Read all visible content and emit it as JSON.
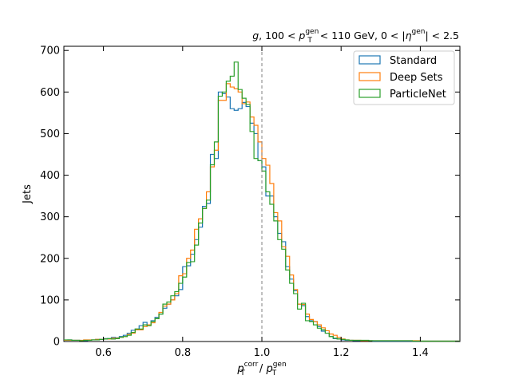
{
  "chart_data": {
    "type": "step-histogram",
    "title_parts": {
      "flavor": "g",
      "pt_low": "100",
      "pt_high": "110",
      "pt_unit": "GeV",
      "eta_low": "0",
      "eta_high": "2.5",
      "sup_gen": "gen",
      "sub_T": "T"
    },
    "xlabel_parts": {
      "p": "p",
      "sub": "T",
      "num_sup": "corr",
      "den_sup": "gen",
      "slash": " / "
    },
    "ylabel": "Jets",
    "xlim": [
      0.5,
      1.5
    ],
    "ylim": [
      0,
      710
    ],
    "xticks": [
      0.6,
      0.8,
      1.0,
      1.2,
      1.4
    ],
    "xtick_labels": [
      "0.6",
      "0.8",
      "1.0",
      "1.2",
      "1.4"
    ],
    "yticks": [
      0,
      100,
      200,
      300,
      400,
      500,
      600,
      700
    ],
    "ytick_labels": [
      "0",
      "100",
      "200",
      "300",
      "400",
      "500",
      "600",
      "700"
    ],
    "reference_line_x": 1.0,
    "legend_placement": "top-right",
    "bin_start": 0.5,
    "bin_width": 0.01,
    "series": [
      {
        "name": "Standard",
        "color": "#1f77b4",
        "values": [
          3,
          4,
          3,
          3,
          2,
          2,
          3,
          4,
          5,
          5,
          7,
          7,
          10,
          9,
          12,
          15,
          20,
          27,
          30,
          38,
          46,
          40,
          50,
          58,
          66,
          80,
          90,
          100,
          110,
          125,
          180,
          182,
          210,
          245,
          275,
          325,
          332,
          450,
          440,
          600,
          596,
          588,
          560,
          556,
          560,
          575,
          565,
          525,
          500,
          435,
          420,
          350,
          350,
          300,
          260,
          240,
          180,
          150,
          122,
          90,
          86,
          60,
          50,
          48,
          36,
          25,
          20,
          12,
          7,
          6,
          4,
          3,
          3,
          2,
          2,
          2,
          2,
          2,
          1,
          1,
          1,
          1,
          1,
          1,
          1,
          1,
          1,
          1,
          1,
          1,
          1,
          1,
          1,
          1,
          1,
          1,
          1,
          1,
          1,
          1
        ]
      },
      {
        "name": "Deep Sets",
        "color": "#ff7f0e",
        "values": [
          3,
          3,
          3,
          3,
          3,
          4,
          4,
          4,
          5,
          5,
          6,
          6,
          8,
          8,
          10,
          12,
          17,
          20,
          28,
          28,
          36,
          40,
          45,
          55,
          70,
          85,
          90,
          100,
          115,
          158,
          163,
          200,
          220,
          270,
          295,
          320,
          360,
          420,
          460,
          580,
          580,
          620,
          612,
          608,
          600,
          572,
          576,
          540,
          520,
          480,
          440,
          424,
          380,
          310,
          290,
          228,
          205,
          160,
          125,
          90,
          89,
          66,
          53,
          48,
          40,
          33,
          26,
          18,
          15,
          10,
          6,
          4,
          3,
          3,
          3,
          2,
          2,
          2,
          2,
          2,
          2,
          2,
          2,
          2,
          2,
          2,
          2,
          2,
          2,
          2,
          1,
          1,
          1,
          1,
          1,
          1,
          1,
          1,
          1,
          1
        ]
      },
      {
        "name": "ParticleNet",
        "color": "#2ca02c",
        "values": [
          4,
          4,
          3,
          3,
          2,
          3,
          3,
          4,
          4,
          5,
          6,
          7,
          6,
          7,
          10,
          12,
          15,
          22,
          30,
          30,
          40,
          38,
          48,
          55,
          66,
          90,
          95,
          110,
          120,
          140,
          155,
          190,
          192,
          232,
          285,
          320,
          340,
          425,
          480,
          590,
          600,
          626,
          638,
          672,
          606,
          585,
          570,
          505,
          440,
          435,
          410,
          360,
          330,
          290,
          245,
          222,
          172,
          140,
          115,
          78,
          92,
          50,
          48,
          40,
          32,
          28,
          20,
          12,
          8,
          6,
          5,
          4,
          3,
          3,
          3,
          3,
          3,
          2,
          2,
          2,
          2,
          2,
          2,
          2,
          2,
          2,
          2,
          2,
          1,
          1,
          1,
          1,
          1,
          1,
          1,
          1,
          1,
          1,
          1,
          1
        ]
      }
    ]
  }
}
